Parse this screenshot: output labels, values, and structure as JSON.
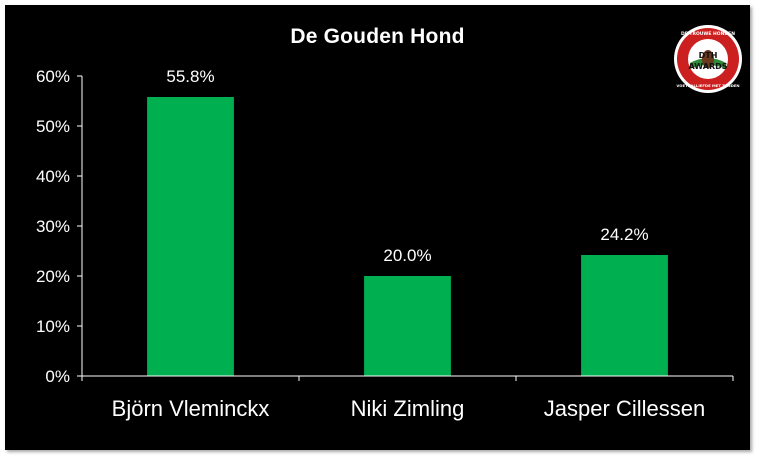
{
  "chart_data": {
    "type": "bar",
    "title": "De Gouden Hond",
    "xlabel": "",
    "ylabel": "",
    "categories": [
      "Björn Vleminckx",
      "Niki Zimling",
      "Jasper Cillessen"
    ],
    "values": [
      55.8,
      20.0,
      24.2
    ],
    "data_labels": [
      "55.8%",
      "20.0%",
      "24.2%"
    ],
    "ylim": [
      0,
      60
    ],
    "yticks": [
      0,
      10,
      20,
      30,
      40,
      50,
      60
    ],
    "ytick_labels": [
      "0%",
      "10%",
      "20%",
      "30%",
      "40%",
      "50%",
      "60%"
    ],
    "bar_color": "#00b050",
    "background_color": "#000000",
    "text_color": "#ffffff",
    "grid": false,
    "legend": "none"
  },
  "badge": {
    "logo_text_top": "DE TROUWE HONDEN",
    "logo_text_mid1": "DTH",
    "logo_text_mid2": "AWARDS",
    "logo_text_bottom": "VOETBALLIEFDE MET TANDEN",
    "colors": {
      "ring": "#cc1f1f",
      "center": "#ffffff",
      "accent": "#2e8b3a"
    }
  }
}
